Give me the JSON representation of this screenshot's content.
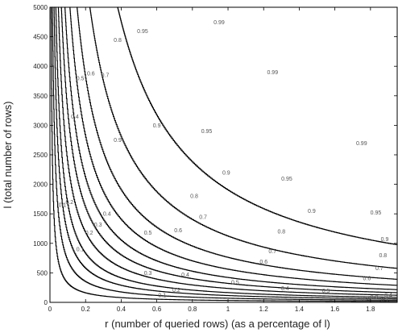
{
  "chart_data": {
    "type": "contour",
    "title": "",
    "xlabel": "r (number of queried rows) (as a percentage of l)",
    "ylabel": "l (total number of rows)",
    "xlim": [
      0,
      1.95
    ],
    "ylim": [
      0,
      5000
    ],
    "xticks": [
      0,
      0.2,
      0.4,
      0.6,
      0.8,
      1,
      1.2,
      1.4,
      1.6,
      1.8
    ],
    "xtick_labels": [
      "0",
      "0.2",
      "0.4",
      "0.6",
      "0.8",
      "1",
      "1.2",
      "1.4",
      "1.6",
      "1.8"
    ],
    "yticks": [
      0,
      500,
      1000,
      1500,
      2000,
      2500,
      3000,
      3500,
      4000,
      4500,
      5000
    ],
    "ytick_labels": [
      "0",
      "500",
      "1000",
      "1500",
      "2000",
      "2500",
      "3000",
      "3500",
      "4000",
      "4500",
      "5000"
    ],
    "grid": false,
    "contour_levels": [
      {
        "label": "0.1",
        "k": 32,
        "label_points": [
          {
            "x": 0.07,
            "y": 1650
          },
          {
            "x": 0.17,
            "y": 900
          },
          {
            "x": 0.63,
            "y": 120
          },
          {
            "x": 1.88,
            "y": 40
          }
        ]
      },
      {
        "label": "0.2",
        "k": 70,
        "label_points": [
          {
            "x": 0.11,
            "y": 1700
          },
          {
            "x": 0.22,
            "y": 1180
          },
          {
            "x": 0.71,
            "y": 210
          },
          {
            "x": 1.77,
            "y": 60
          }
        ]
      },
      {
        "label": "0.3",
        "k": 115,
        "label_points": [
          {
            "x": 0.27,
            "y": 1320
          },
          {
            "x": 0.55,
            "y": 500
          },
          {
            "x": 1.82,
            "y": 90
          }
        ]
      },
      {
        "label": "0.4",
        "k": 165,
        "label_points": [
          {
            "x": 0.14,
            "y": 3150
          },
          {
            "x": 0.32,
            "y": 1500
          },
          {
            "x": 0.76,
            "y": 470
          },
          {
            "x": 1.32,
            "y": 240
          },
          {
            "x": 1.9,
            "y": 120
          }
        ]
      },
      {
        "label": "0.5",
        "k": 235,
        "label_points": [
          {
            "x": 0.17,
            "y": 3800
          },
          {
            "x": 0.55,
            "y": 1180
          },
          {
            "x": 1.04,
            "y": 340
          },
          {
            "x": 1.55,
            "y": 200
          }
        ]
      },
      {
        "label": "0.6",
        "k": 320,
        "label_points": [
          {
            "x": 0.23,
            "y": 3880
          },
          {
            "x": 0.72,
            "y": 1220
          },
          {
            "x": 1.2,
            "y": 690
          },
          {
            "x": 1.78,
            "y": 410
          }
        ]
      },
      {
        "label": "0.7",
        "k": 420,
        "label_points": [
          {
            "x": 0.31,
            "y": 3850
          },
          {
            "x": 0.86,
            "y": 1450
          },
          {
            "x": 1.25,
            "y": 870
          },
          {
            "x": 1.85,
            "y": 580
          }
        ]
      },
      {
        "label": "0.8",
        "k": 560,
        "label_points": [
          {
            "x": 0.38,
            "y": 4450
          },
          {
            "x": 0.81,
            "y": 1800
          },
          {
            "x": 1.3,
            "y": 1200
          },
          {
            "x": 1.87,
            "y": 800
          }
        ]
      },
      {
        "label": "0.9",
        "k": 760,
        "label_points": [
          {
            "x": 0.38,
            "y": 2750
          },
          {
            "x": 0.6,
            "y": 3000
          },
          {
            "x": 0.99,
            "y": 2200
          },
          {
            "x": 1.47,
            "y": 1550
          },
          {
            "x": 1.88,
            "y": 1070
          }
        ]
      },
      {
        "label": "0.95",
        "k": 1120,
        "label_points": [
          {
            "x": 0.52,
            "y": 4600
          },
          {
            "x": 0.88,
            "y": 2900
          },
          {
            "x": 1.33,
            "y": 2100
          },
          {
            "x": 1.83,
            "y": 1520
          }
        ]
      },
      {
        "label": "0.99",
        "k": 1900,
        "label_points": [
          {
            "x": 0.95,
            "y": 4750
          },
          {
            "x": 1.25,
            "y": 3900
          },
          {
            "x": 1.75,
            "y": 2700
          }
        ]
      }
    ]
  }
}
